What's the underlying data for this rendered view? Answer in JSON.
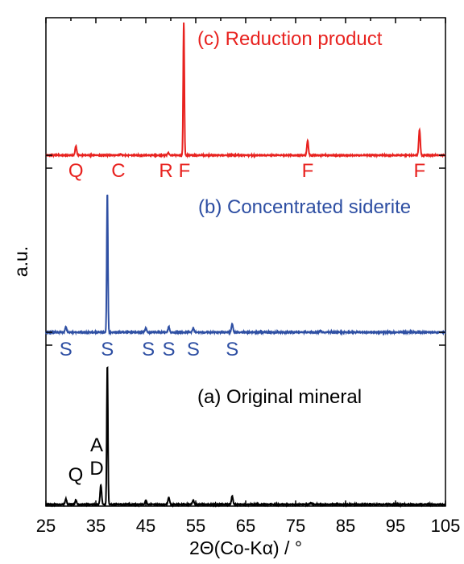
{
  "chart_data": {
    "type": "line",
    "xlabel": "2Θ(Co-Kα) / °",
    "ylabel": "a.u.",
    "xlim": [
      25,
      105
    ],
    "xticks": [
      25,
      35,
      45,
      55,
      65,
      75,
      85,
      95,
      105
    ],
    "grid": false,
    "series": [
      {
        "name": "(a) Original mineral",
        "color": "#000000",
        "baseline_peaks": [
          {
            "x": 29.0,
            "y": 4
          },
          {
            "x": 31.0,
            "y": 3
          },
          {
            "x": 36.0,
            "y": 14
          },
          {
            "x": 37.3,
            "y": 100
          },
          {
            "x": 45.0,
            "y": 3
          },
          {
            "x": 49.6,
            "y": 5
          },
          {
            "x": 54.5,
            "y": 3
          },
          {
            "x": 62.3,
            "y": 6
          },
          {
            "x": 78.0,
            "y": 1
          }
        ],
        "annotations": [
          {
            "text": "A",
            "x": 35.8
          },
          {
            "text": "D",
            "x": 36.0
          },
          {
            "text": "Q",
            "x": 33.0
          }
        ]
      },
      {
        "name": "(b) Concentrated siderite",
        "color": "#2e4fa3",
        "baseline_peaks": [
          {
            "x": 29.0,
            "y": 4
          },
          {
            "x": 37.3,
            "y": 100
          },
          {
            "x": 45.0,
            "y": 3
          },
          {
            "x": 49.6,
            "y": 4
          },
          {
            "x": 54.5,
            "y": 3
          },
          {
            "x": 62.3,
            "y": 6
          },
          {
            "x": 80.0,
            "y": 1
          }
        ],
        "annotations": [
          {
            "text": "S",
            "x": 29.0
          },
          {
            "text": "S",
            "x": 37.3
          },
          {
            "text": "S",
            "x": 45.5
          },
          {
            "text": "S",
            "x": 49.6
          },
          {
            "text": "S",
            "x": 54.5
          },
          {
            "text": "S",
            "x": 62.3
          }
        ]
      },
      {
        "name": "(c) Reduction product",
        "color": "#e8221f",
        "baseline_peaks": [
          {
            "x": 31.0,
            "y": 7
          },
          {
            "x": 40.0,
            "y": 1
          },
          {
            "x": 49.5,
            "y": 2
          },
          {
            "x": 52.6,
            "y": 100
          },
          {
            "x": 77.4,
            "y": 11
          },
          {
            "x": 99.8,
            "y": 19
          }
        ],
        "annotations": [
          {
            "text": "Q",
            "x": 31.0
          },
          {
            "text": "C",
            "x": 39.5
          },
          {
            "text": "R",
            "x": 49.5
          },
          {
            "text": "F",
            "x": 52.6
          },
          {
            "text": "F",
            "x": 77.4
          },
          {
            "text": "F",
            "x": 99.8
          }
        ]
      }
    ]
  }
}
